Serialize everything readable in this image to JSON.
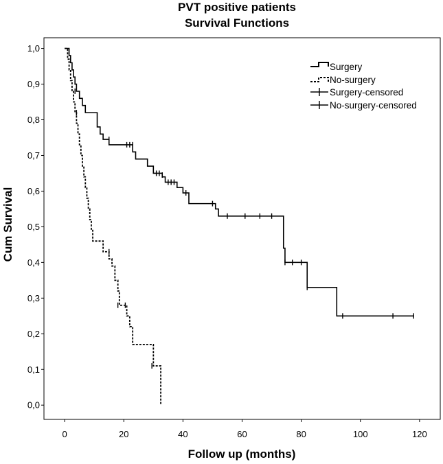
{
  "chart_data": {
    "type": "line",
    "subtype": "kaplan-meier-step",
    "title": [
      "PVT positive patients",
      "Survival Functions"
    ],
    "xlabel": "Follow up (months)",
    "ylabel": "Cum Survival",
    "xlim": [
      -7,
      127
    ],
    "ylim": [
      -0.04,
      1.03
    ],
    "xticks": [
      0,
      20,
      40,
      60,
      80,
      100,
      120
    ],
    "xtick_labels": [
      "0",
      "20",
      "40",
      "60",
      "80",
      "100",
      "120"
    ],
    "yticks": [
      0.0,
      0.1,
      0.2,
      0.3,
      0.4,
      0.5,
      0.6,
      0.7,
      0.8,
      0.9,
      1.0
    ],
    "ytick_labels": [
      "0,0",
      "0,1",
      "0,2",
      "0,3",
      "0,4",
      "0,5",
      "0,6",
      "0,7",
      "0,8",
      "0,9",
      "1,0"
    ],
    "grid": false,
    "legend_position": "top-right",
    "legend": [
      {
        "label": "Surgery",
        "style": "solid-step"
      },
      {
        "label": "No-surgery",
        "style": "dashed-step"
      },
      {
        "label": "Surgery-censored",
        "style": "censor-mark"
      },
      {
        "label": "No-surgery-censored",
        "style": "censor-mark"
      }
    ],
    "series": [
      {
        "name": "Surgery",
        "dash": false,
        "steps": [
          [
            0,
            1.0
          ],
          [
            1.5,
            0.98
          ],
          [
            2,
            0.96
          ],
          [
            2.5,
            0.94
          ],
          [
            3,
            0.92
          ],
          [
            3.5,
            0.9
          ],
          [
            4,
            0.88
          ],
          [
            5,
            0.86
          ],
          [
            6,
            0.84
          ],
          [
            7,
            0.82
          ],
          [
            11,
            0.78
          ],
          [
            12,
            0.76
          ],
          [
            13,
            0.745
          ],
          [
            15,
            0.73
          ],
          [
            23,
            0.71
          ],
          [
            24,
            0.69
          ],
          [
            28,
            0.67
          ],
          [
            30,
            0.65
          ],
          [
            33,
            0.64
          ],
          [
            34,
            0.625
          ],
          [
            38,
            0.61
          ],
          [
            40,
            0.595
          ],
          [
            42,
            0.565
          ],
          [
            51,
            0.55
          ],
          [
            52,
            0.53
          ],
          [
            74,
            0.44
          ],
          [
            74.5,
            0.4
          ],
          [
            82,
            0.33
          ],
          [
            92,
            0.25
          ],
          [
            118,
            0.25
          ]
        ],
        "censored": [
          [
            15,
            0.745
          ],
          [
            21,
            0.73
          ],
          [
            22,
            0.73
          ],
          [
            23,
            0.73
          ],
          [
            31,
            0.65
          ],
          [
            32,
            0.65
          ],
          [
            33,
            0.645
          ],
          [
            35,
            0.625
          ],
          [
            36,
            0.625
          ],
          [
            37,
            0.625
          ],
          [
            41,
            0.595
          ],
          [
            50,
            0.565
          ],
          [
            55,
            0.53
          ],
          [
            61,
            0.53
          ],
          [
            66,
            0.53
          ],
          [
            70,
            0.53
          ],
          [
            74.5,
            0.4
          ],
          [
            77,
            0.4
          ],
          [
            80,
            0.4
          ],
          [
            82,
            0.33
          ],
          [
            94,
            0.25
          ],
          [
            111,
            0.25
          ],
          [
            118,
            0.25
          ]
        ]
      },
      {
        "name": "No-surgery",
        "dash": true,
        "steps": [
          [
            0,
            1.0
          ],
          [
            1,
            0.97
          ],
          [
            1.5,
            0.94
          ],
          [
            2,
            0.91
          ],
          [
            2.5,
            0.88
          ],
          [
            3,
            0.85
          ],
          [
            3.5,
            0.82
          ],
          [
            4,
            0.79
          ],
          [
            4.5,
            0.76
          ],
          [
            5,
            0.73
          ],
          [
            5.5,
            0.7
          ],
          [
            6,
            0.67
          ],
          [
            6.5,
            0.64
          ],
          [
            7,
            0.61
          ],
          [
            7.5,
            0.58
          ],
          [
            8,
            0.55
          ],
          [
            8.5,
            0.52
          ],
          [
            9,
            0.49
          ],
          [
            9.5,
            0.46
          ],
          [
            13,
            0.43
          ],
          [
            15,
            0.41
          ],
          [
            16,
            0.39
          ],
          [
            17,
            0.35
          ],
          [
            18,
            0.32
          ],
          [
            18.5,
            0.28
          ],
          [
            21,
            0.25
          ],
          [
            22,
            0.22
          ],
          [
            23,
            0.17
          ],
          [
            30,
            0.11
          ],
          [
            32.5,
            0.0
          ]
        ],
        "censored": [
          [
            3.5,
            0.88
          ],
          [
            4,
            0.82
          ],
          [
            15,
            0.43
          ],
          [
            18,
            0.28
          ],
          [
            20.5,
            0.28
          ],
          [
            29.5,
            0.11
          ]
        ]
      }
    ]
  }
}
